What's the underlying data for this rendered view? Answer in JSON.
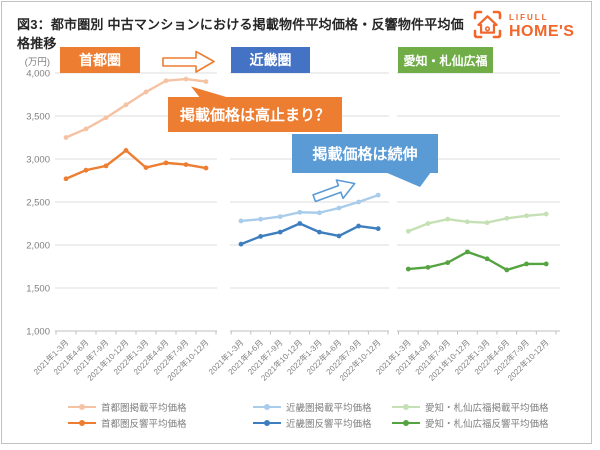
{
  "header": {
    "title": "図3：都市圏別 中古マンションにおける掲載物件平均価格・反響物件平均価格推移",
    "logo": {
      "brand_top": "LIFULL",
      "brand_bottom": "HOME'S",
      "color": "#F2662B"
    }
  },
  "chart_data": {
    "type": "line",
    "unit_label": "(万円)",
    "categories": [
      "2021年1-3月",
      "2021年4-6月",
      "2021年7-9月",
      "2021年10-12月",
      "2022年1-3月",
      "2022年4-6月",
      "2022年7-9月",
      "2022年10-12月"
    ],
    "ylim": [
      1000,
      4000
    ],
    "ytick_step": 500,
    "ytick_labels": [
      "4,000",
      "3,500",
      "3,000",
      "2,500",
      "2,000",
      "1,500",
      "1,000"
    ],
    "grid": true,
    "legend_position": "bottom",
    "panels": [
      {
        "region": "首都圏",
        "badge_color": "#ED7D31",
        "series": [
          {
            "name": "首都圏掲載平均価格",
            "color": "#F5C3A3",
            "values": [
              3250,
              3350,
              3480,
              3630,
              3780,
              3910,
              3930,
              3900
            ]
          },
          {
            "name": "首都圏反響平均価格",
            "color": "#ED7D31",
            "values": [
              2770,
              2870,
              2920,
              3100,
              2900,
              2955,
              2935,
              2895
            ]
          }
        ]
      },
      {
        "region": "近畿圏",
        "badge_color": "#4472C4",
        "series": [
          {
            "name": "近畿圏掲載平均価格",
            "color": "#A9CCEB",
            "values": [
              2280,
              2300,
              2330,
              2380,
              2375,
              2430,
              2500,
              2580
            ]
          },
          {
            "name": "近畿圏反響平均価格",
            "color": "#3D7EBF",
            "values": [
              2010,
              2100,
              2150,
              2250,
              2150,
              2105,
              2220,
              2190
            ]
          }
        ]
      },
      {
        "region": "愛知・札仙広福",
        "badge_color": "#70AD47",
        "series": [
          {
            "name": "愛知・札仙広福掲載平均価格",
            "color": "#C5E0B4",
            "values": [
              2160,
              2250,
              2300,
              2270,
              2260,
              2310,
              2340,
              2360
            ]
          },
          {
            "name": "愛知・札仙広福反響平均価格",
            "color": "#55A341",
            "values": [
              1720,
              1740,
              1795,
              1920,
              1840,
              1710,
              1780,
              1780
            ]
          }
        ]
      }
    ]
  },
  "annotations": {
    "callout_shutoken": {
      "text": "掲載価格は高止まり？",
      "color": "#ED7D31"
    },
    "callout_kinki": {
      "text": "掲載価格は続伸",
      "color": "#5B9BD5"
    },
    "arrow_colors": {
      "orange": "#ED7D31",
      "blue": "#5B9BD5"
    }
  }
}
